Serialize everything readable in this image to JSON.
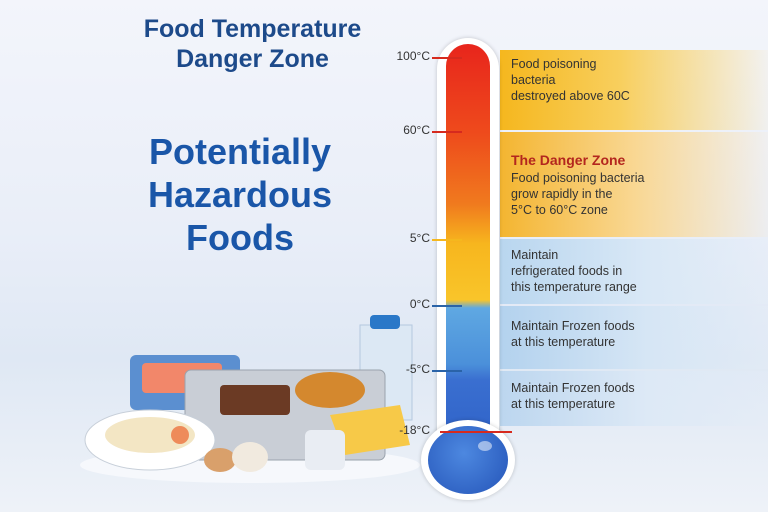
{
  "header": {
    "title_line1": "Food Temperature",
    "title_line2": "Danger Zone"
  },
  "subtitle": {
    "line1": "Potentially",
    "line2": "Hazardous",
    "line3": "Foods"
  },
  "thermometer": {
    "ticks": [
      "100°C",
      "60°C",
      "5°C",
      "0°C",
      "-5°C",
      "-18°C"
    ],
    "tick_colors": [
      "#d62a1e",
      "#d62a1e",
      "#f5b71e",
      "#2a63a8",
      "#2a63a8",
      "#d62a1e"
    ]
  },
  "zones": [
    {
      "lines": [
        "Food poisoning",
        "bacteria",
        "destroyed above 60C"
      ],
      "color": "#f5b71e"
    },
    {
      "heading": "The Danger Zone",
      "lines": [
        "Food poisoning bacteria",
        "grow rapidly in the",
        "5°C to 60°C zone"
      ],
      "color": "#f4b530"
    },
    {
      "lines": [
        "Maintain",
        "refrigerated foods in",
        "this temperature range"
      ],
      "color": "#b9d6ef"
    },
    {
      "lines": [
        "Maintain Frozen foods",
        "at this temperature"
      ],
      "color": "#b3d2ee"
    },
    {
      "lines": [
        "Maintain Frozen foods",
        "at this temperature"
      ],
      "color": "#bcd6ef"
    }
  ],
  "illustration": {
    "icon": "food-platter-illustration"
  }
}
